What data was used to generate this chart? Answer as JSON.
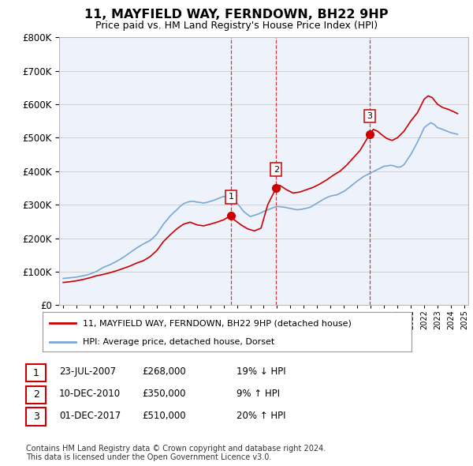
{
  "title": "11, MAYFIELD WAY, FERNDOWN, BH22 9HP",
  "subtitle": "Price paid vs. HM Land Registry's House Price Index (HPI)",
  "ylim": [
    0,
    800000
  ],
  "bg_color": "#eef2fb",
  "red_line_color": "#cc0000",
  "blue_line_color": "#7aa8d4",
  "sale_marker_color": "#cc0000",
  "vline_color": "#cc0000",
  "sales": [
    {
      "num": 1,
      "year": 2007.55,
      "price": 268000,
      "date": "23-JUL-2007",
      "pct": "19%",
      "dir": "↓"
    },
    {
      "num": 2,
      "year": 2010.93,
      "price": 350000,
      "date": "10-DEC-2010",
      "pct": "9%",
      "dir": "↑"
    },
    {
      "num": 3,
      "year": 2017.92,
      "price": 510000,
      "date": "01-DEC-2017",
      "pct": "20%",
      "dir": "↑"
    }
  ],
  "legend_entries": [
    "11, MAYFIELD WAY, FERNDOWN, BH22 9HP (detached house)",
    "HPI: Average price, detached house, Dorset"
  ],
  "footnote1": "Contains HM Land Registry data © Crown copyright and database right 2024.",
  "footnote2": "This data is licensed under the Open Government Licence v3.0.",
  "hpi_data_x": [
    1995.0,
    1995.25,
    1995.5,
    1995.75,
    1996.0,
    1996.25,
    1996.5,
    1996.75,
    1997.0,
    1997.25,
    1997.5,
    1997.75,
    1998.0,
    1998.25,
    1998.5,
    1998.75,
    1999.0,
    1999.25,
    1999.5,
    1999.75,
    2000.0,
    2000.25,
    2000.5,
    2000.75,
    2001.0,
    2001.25,
    2001.5,
    2001.75,
    2002.0,
    2002.25,
    2002.5,
    2002.75,
    2003.0,
    2003.25,
    2003.5,
    2003.75,
    2004.0,
    2004.25,
    2004.5,
    2004.75,
    2005.0,
    2005.25,
    2005.5,
    2005.75,
    2006.0,
    2006.25,
    2006.5,
    2006.75,
    2007.0,
    2007.25,
    2007.5,
    2007.75,
    2008.0,
    2008.25,
    2008.5,
    2008.75,
    2009.0,
    2009.25,
    2009.5,
    2009.75,
    2010.0,
    2010.25,
    2010.5,
    2010.75,
    2011.0,
    2011.25,
    2011.5,
    2011.75,
    2012.0,
    2012.25,
    2012.5,
    2012.75,
    2013.0,
    2013.25,
    2013.5,
    2013.75,
    2014.0,
    2014.25,
    2014.5,
    2014.75,
    2015.0,
    2015.25,
    2015.5,
    2015.75,
    2016.0,
    2016.25,
    2016.5,
    2016.75,
    2017.0,
    2017.25,
    2017.5,
    2017.75,
    2018.0,
    2018.25,
    2018.5,
    2018.75,
    2019.0,
    2019.25,
    2019.5,
    2019.75,
    2020.0,
    2020.25,
    2020.5,
    2020.75,
    2021.0,
    2021.25,
    2021.5,
    2021.75,
    2022.0,
    2022.25,
    2022.5,
    2022.75,
    2023.0,
    2023.25,
    2023.5,
    2023.75,
    2024.0,
    2024.25,
    2024.5
  ],
  "hpi_data_y": [
    80000,
    81000,
    82000,
    83000,
    84000,
    86000,
    88000,
    90000,
    93000,
    97000,
    101000,
    107000,
    113000,
    117000,
    121000,
    126000,
    131000,
    137000,
    143000,
    150000,
    157000,
    164000,
    171000,
    177000,
    183000,
    188000,
    193000,
    202000,
    212000,
    227000,
    242000,
    254000,
    266000,
    276000,
    285000,
    295000,
    303000,
    307000,
    310000,
    310000,
    308000,
    307000,
    305000,
    307000,
    310000,
    313000,
    317000,
    321000,
    325000,
    323000,
    320000,
    312000,
    305000,
    293000,
    280000,
    272000,
    265000,
    268000,
    271000,
    275000,
    280000,
    284000,
    288000,
    292000,
    295000,
    294000,
    293000,
    291000,
    289000,
    287000,
    285000,
    286000,
    288000,
    290000,
    293000,
    299000,
    305000,
    311000,
    317000,
    322000,
    326000,
    328000,
    330000,
    335000,
    340000,
    347000,
    355000,
    363000,
    371000,
    378000,
    385000,
    390000,
    395000,
    400000,
    405000,
    410000,
    415000,
    416000,
    418000,
    416000,
    412000,
    413000,
    420000,
    435000,
    450000,
    468000,
    487000,
    508000,
    530000,
    538000,
    545000,
    540000,
    530000,
    527000,
    523000,
    519000,
    515000,
    513000,
    510000
  ],
  "price_data_x": [
    1995.0,
    1995.5,
    1996.0,
    1996.5,
    1997.0,
    1997.5,
    1998.0,
    1998.5,
    1999.0,
    1999.5,
    2000.0,
    2000.5,
    2001.0,
    2001.5,
    2002.0,
    2002.5,
    2003.0,
    2003.5,
    2004.0,
    2004.5,
    2005.0,
    2005.5,
    2006.0,
    2006.5,
    2007.0,
    2007.55,
    2007.8,
    2008.3,
    2008.8,
    2009.3,
    2009.8,
    2010.3,
    2010.93,
    2011.2,
    2011.7,
    2012.2,
    2012.7,
    2013.2,
    2013.7,
    2014.2,
    2014.7,
    2015.2,
    2015.7,
    2016.2,
    2016.7,
    2017.2,
    2017.92,
    2018.2,
    2018.5,
    2018.8,
    2019.2,
    2019.6,
    2020.0,
    2020.5,
    2021.0,
    2021.5,
    2022.0,
    2022.3,
    2022.6,
    2023.0,
    2023.4,
    2023.8,
    2024.2,
    2024.5
  ],
  "price_data_y": [
    68000,
    70000,
    73000,
    77000,
    82000,
    88000,
    92000,
    97000,
    103000,
    110000,
    117000,
    126000,
    133000,
    145000,
    163000,
    190000,
    210000,
    228000,
    242000,
    248000,
    240000,
    237000,
    242000,
    248000,
    255000,
    268000,
    255000,
    240000,
    228000,
    222000,
    230000,
    300000,
    350000,
    358000,
    345000,
    335000,
    338000,
    345000,
    352000,
    362000,
    374000,
    388000,
    400000,
    418000,
    440000,
    462000,
    510000,
    525000,
    520000,
    510000,
    498000,
    492000,
    500000,
    520000,
    550000,
    575000,
    615000,
    625000,
    620000,
    600000,
    590000,
    585000,
    578000,
    572000
  ]
}
